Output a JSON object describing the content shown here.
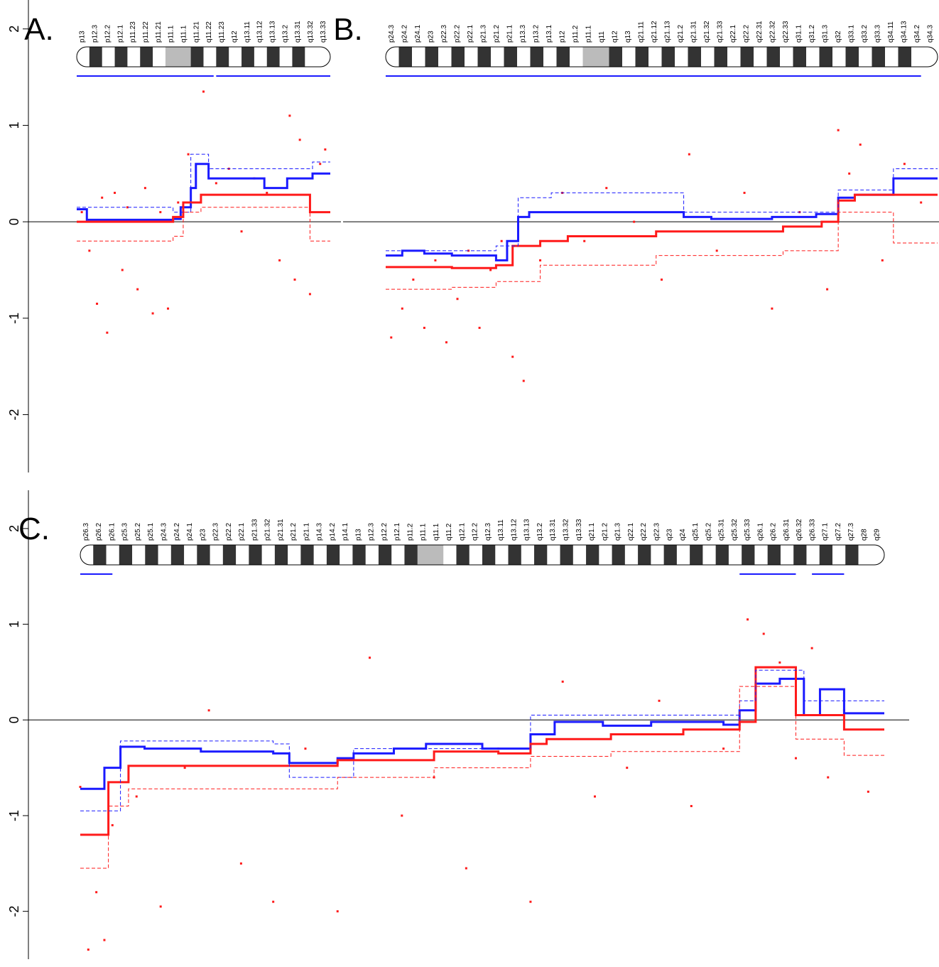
{
  "chart_data": [
    {
      "type": "line",
      "label": "A.",
      "xlim": [
        0,
        100
      ],
      "ylim": [
        -2.6,
        2.3
      ],
      "yticks": [
        2,
        1,
        0,
        -1,
        -2
      ],
      "bands": [
        "p13",
        "p12.3",
        "p12.2",
        "p12.1",
        "p11.23",
        "p11.22",
        "p11.21",
        "p11.1",
        "q11.1",
        "q11.21",
        "q11.22",
        "q11.23",
        "q12",
        "q13.11",
        "q13.12",
        "q13.13",
        "q13.2",
        "q13.31",
        "q13.32",
        "q13.33"
      ],
      "regions": [
        [
          0,
          54
        ],
        [
          55,
          100
        ]
      ],
      "series": [
        {
          "color": "#1a1aff",
          "dashed": false,
          "x": [
            0,
            4,
            38,
            41,
            45,
            47,
            52,
            74,
            83,
            93
          ],
          "values": [
            0.13,
            0.02,
            0.03,
            0.15,
            0.35,
            0.6,
            0.45,
            0.35,
            0.45,
            0.5
          ]
        },
        {
          "color": "#ff1a1a",
          "dashed": false,
          "x": [
            0,
            38,
            42,
            49,
            92
          ],
          "values": [
            0.0,
            0.05,
            0.2,
            0.28,
            0.1
          ]
        },
        {
          "color": "#1a1aff",
          "dashed": true,
          "x": [
            0,
            38,
            45,
            52,
            93
          ],
          "values": [
            0.15,
            0.1,
            0.7,
            0.55,
            0.62
          ]
        },
        {
          "color": "#ff1a1a",
          "dashed": true,
          "x": [
            0,
            38,
            42,
            49,
            92
          ],
          "values": [
            -0.2,
            -0.15,
            0.1,
            0.15,
            -0.2
          ]
        }
      ],
      "points": {
        "color": "#ff1a1a",
        "x": [
          2,
          5,
          8,
          10,
          12,
          15,
          18,
          20,
          24,
          27,
          30,
          33,
          36,
          40,
          44,
          50,
          55,
          60,
          65,
          70,
          75,
          80,
          84,
          86,
          88,
          92,
          96,
          98
        ],
        "values": [
          0.1,
          -0.3,
          -0.85,
          0.25,
          -1.15,
          0.3,
          -0.5,
          0.15,
          -0.7,
          0.35,
          -0.95,
          0.1,
          -0.9,
          0.2,
          0.7,
          1.35,
          0.4,
          0.55,
          -0.1,
          0.45,
          0.3,
          -0.4,
          1.1,
          -0.6,
          0.85,
          -0.75,
          0.6,
          0.75
        ]
      }
    },
    {
      "type": "line",
      "label": "B.",
      "xlim": [
        0,
        100
      ],
      "ylim": [
        -2.6,
        2.3
      ],
      "bands": [
        "p24.3",
        "p24.2",
        "p24.1",
        "p23",
        "p22.3",
        "p22.2",
        "p22.1",
        "p21.3",
        "p21.2",
        "p21.1",
        "p13.3",
        "p13.2",
        "p13.1",
        "p12",
        "p11.2",
        "p11.1",
        "q11",
        "q12",
        "q13",
        "q21.11",
        "q21.12",
        "q21.13",
        "q21.2",
        "q21.31",
        "q21.32",
        "q21.33",
        "q22.1",
        "q22.2",
        "q22.31",
        "q22.32",
        "q22.33",
        "q31.1",
        "q31.2",
        "q31.3",
        "q32",
        "q33.1",
        "q33.2",
        "q33.3",
        "q34.11",
        "q34.13",
        "q34.2",
        "q34.3"
      ],
      "regions": [
        [
          0,
          97
        ]
      ],
      "series": [
        {
          "color": "#1a1aff",
          "dashed": false,
          "x": [
            0,
            3,
            7,
            12,
            20,
            22,
            24,
            26,
            54,
            59,
            70,
            78,
            82,
            85,
            92
          ],
          "values": [
            -0.35,
            -0.3,
            -0.33,
            -0.35,
            -0.4,
            -0.2,
            0.05,
            0.1,
            0.05,
            0.03,
            0.05,
            0.08,
            0.25,
            0.28,
            0.45
          ]
        },
        {
          "color": "#ff1a1a",
          "dashed": false,
          "x": [
            0,
            12,
            20,
            23,
            28,
            33,
            49,
            72,
            79,
            82,
            85
          ],
          "values": [
            -0.47,
            -0.48,
            -0.45,
            -0.25,
            -0.2,
            -0.15,
            -0.1,
            -0.05,
            0,
            0.22,
            0.28
          ]
        },
        {
          "color": "#1a1aff",
          "dashed": true,
          "x": [
            0,
            20,
            24,
            30,
            54,
            82,
            92
          ],
          "values": [
            -0.3,
            -0.25,
            0.25,
            0.3,
            0.1,
            0.33,
            0.55
          ]
        },
        {
          "color": "#ff1a1a",
          "dashed": true,
          "x": [
            0,
            12,
            20,
            28,
            49,
            72,
            82,
            92
          ],
          "values": [
            -0.7,
            -0.68,
            -0.62,
            -0.45,
            -0.35,
            -0.3,
            0.1,
            -0.22
          ]
        }
      ],
      "points": {
        "color": "#ff1a1a",
        "x": [
          1,
          3,
          5,
          7,
          9,
          11,
          13,
          15,
          17,
          19,
          21,
          23,
          25,
          28,
          32,
          36,
          40,
          45,
          50,
          55,
          60,
          65,
          70,
          75,
          80,
          82,
          84,
          86,
          90,
          94,
          97
        ],
        "values": [
          -1.2,
          -0.9,
          -0.6,
          -1.1,
          -0.4,
          -1.25,
          -0.8,
          -0.3,
          -1.1,
          -0.5,
          -0.2,
          -1.4,
          -1.65,
          -0.4,
          0.3,
          -0.2,
          0.35,
          0.0,
          -0.6,
          0.7,
          -0.3,
          0.3,
          -0.9,
          0.1,
          -0.7,
          0.95,
          0.5,
          0.8,
          -0.4,
          0.6,
          0.2
        ]
      }
    },
    {
      "type": "line",
      "label": "C.",
      "xlim": [
        0,
        100
      ],
      "ylim": [
        -2.5,
        2.4
      ],
      "yticks": [
        2,
        1,
        0,
        -1,
        -2
      ],
      "bands": [
        "p26.3",
        "p26.2",
        "p26.1",
        "p25.3",
        "p25.2",
        "p25.1",
        "p24.3",
        "p24.2",
        "p24.1",
        "p23",
        "p22.3",
        "p22.2",
        "p22.1",
        "p21.33",
        "p21.32",
        "p21.31",
        "p21.2",
        "p21.1",
        "p14.3",
        "p14.2",
        "p14.1",
        "p13",
        "p12.3",
        "p12.2",
        "p12.1",
        "p11.2",
        "p11.1",
        "q11.1",
        "q11.2",
        "q12.1",
        "q12.2",
        "q12.3",
        "q13.11",
        "q13.12",
        "q13.13",
        "q13.2",
        "q13.31",
        "q13.32",
        "q13.33",
        "q21.1",
        "q21.2",
        "q21.3",
        "q22.1",
        "q22.2",
        "q22.3",
        "q23",
        "q24",
        "q25.1",
        "q25.2",
        "q25.31",
        "q25.32",
        "q25.33",
        "q26.1",
        "q26.2",
        "q26.31",
        "q26.32",
        "q26.33",
        "q27.1",
        "q27.2",
        "q27.3",
        "q28",
        "q29"
      ],
      "regions": [
        [
          0,
          4
        ],
        [
          82,
          89
        ],
        [
          91,
          95
        ]
      ],
      "series": [
        {
          "color": "#1a1aff",
          "dashed": false,
          "x": [
            0,
            3,
            5,
            8,
            15,
            24,
            26,
            32,
            34,
            39,
            43,
            50,
            56,
            59,
            65,
            71,
            80,
            82,
            84,
            87,
            90,
            92,
            95
          ],
          "values": [
            -0.72,
            -0.5,
            -0.28,
            -0.3,
            -0.33,
            -0.35,
            -0.45,
            -0.4,
            -0.35,
            -0.3,
            -0.25,
            -0.3,
            -0.15,
            -0.02,
            -0.06,
            -0.02,
            -0.05,
            0.1,
            0.38,
            0.43,
            0.05,
            0.32,
            0.07
          ]
        },
        {
          "color": "#ff1a1a",
          "dashed": false,
          "x": [
            0,
            3.5,
            6,
            26,
            32,
            44,
            52,
            56,
            58,
            66,
            75,
            82,
            84,
            89,
            95
          ],
          "values": [
            -1.2,
            -0.65,
            -0.48,
            -0.48,
            -0.42,
            -0.33,
            -0.35,
            -0.25,
            -0.2,
            -0.15,
            -0.1,
            -0.02,
            0.55,
            0.05,
            -0.1
          ]
        },
        {
          "color": "#1a1aff",
          "dashed": true,
          "x": [
            0,
            5,
            24,
            26,
            34,
            56,
            82,
            84,
            90,
            95
          ],
          "values": [
            -0.95,
            -0.22,
            -0.25,
            -0.6,
            -0.3,
            0.05,
            0.2,
            0.52,
            0.2,
            0.2
          ]
        },
        {
          "color": "#ff1a1a",
          "dashed": true,
          "x": [
            0,
            3.5,
            6,
            26,
            32,
            44,
            56,
            66,
            82,
            89,
            95
          ],
          "values": [
            -1.55,
            -0.9,
            -0.72,
            -0.72,
            -0.6,
            -0.5,
            -0.38,
            -0.33,
            0.35,
            -0.2,
            -0.37
          ]
        }
      ],
      "points": {
        "color": "#ff1a1a",
        "x": [
          0,
          1,
          2,
          3,
          4,
          5,
          7,
          10,
          13,
          16,
          20,
          24,
          28,
          32,
          36,
          40,
          44,
          48,
          52,
          56,
          60,
          64,
          68,
          72,
          76,
          80,
          83,
          85,
          87,
          89,
          91,
          93,
          95,
          98
        ],
        "values": [
          -0.7,
          -2.4,
          -1.8,
          -2.3,
          -1.1,
          -0.3,
          -0.8,
          -1.95,
          -0.5,
          0.1,
          -1.5,
          -1.9,
          -0.3,
          -2.0,
          0.65,
          -1.0,
          -0.6,
          -1.55,
          -0.3,
          -1.9,
          0.4,
          -0.8,
          -0.5,
          0.2,
          -0.9,
          -0.3,
          1.05,
          0.9,
          0.6,
          -0.4,
          0.75,
          -0.6,
          0.1,
          -0.75
        ]
      }
    }
  ]
}
